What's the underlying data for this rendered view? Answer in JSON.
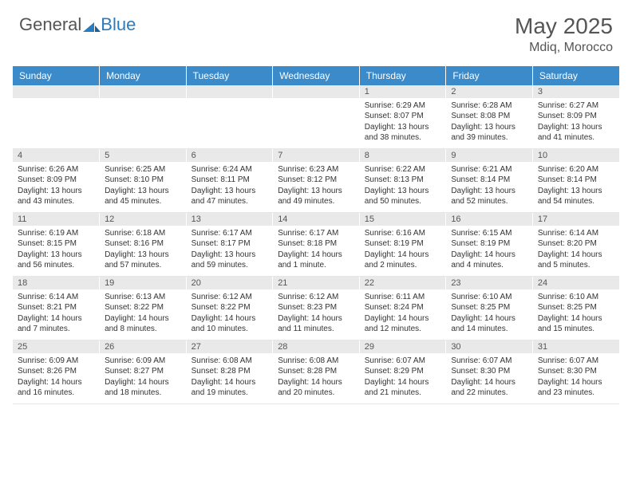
{
  "brand": {
    "general": "General",
    "blue": "Blue"
  },
  "title": {
    "month": "May 2025",
    "location": "Mdiq, Morocco"
  },
  "colors": {
    "header_bg": "#3b8aca",
    "header_text": "#ffffff",
    "daynum_bg": "#e9e9e9",
    "text": "#333333",
    "title_text": "#555555",
    "logo_blue": "#2b7bbf"
  },
  "dayLabels": [
    "Sunday",
    "Monday",
    "Tuesday",
    "Wednesday",
    "Thursday",
    "Friday",
    "Saturday"
  ],
  "weeks": [
    [
      {
        "n": "",
        "sr": "",
        "ss": "",
        "dl": ""
      },
      {
        "n": "",
        "sr": "",
        "ss": "",
        "dl": ""
      },
      {
        "n": "",
        "sr": "",
        "ss": "",
        "dl": ""
      },
      {
        "n": "",
        "sr": "",
        "ss": "",
        "dl": ""
      },
      {
        "n": "1",
        "sr": "6:29 AM",
        "ss": "8:07 PM",
        "dl": "13 hours and 38 minutes."
      },
      {
        "n": "2",
        "sr": "6:28 AM",
        "ss": "8:08 PM",
        "dl": "13 hours and 39 minutes."
      },
      {
        "n": "3",
        "sr": "6:27 AM",
        "ss": "8:09 PM",
        "dl": "13 hours and 41 minutes."
      }
    ],
    [
      {
        "n": "4",
        "sr": "6:26 AM",
        "ss": "8:09 PM",
        "dl": "13 hours and 43 minutes."
      },
      {
        "n": "5",
        "sr": "6:25 AM",
        "ss": "8:10 PM",
        "dl": "13 hours and 45 minutes."
      },
      {
        "n": "6",
        "sr": "6:24 AM",
        "ss": "8:11 PM",
        "dl": "13 hours and 47 minutes."
      },
      {
        "n": "7",
        "sr": "6:23 AM",
        "ss": "8:12 PM",
        "dl": "13 hours and 49 minutes."
      },
      {
        "n": "8",
        "sr": "6:22 AM",
        "ss": "8:13 PM",
        "dl": "13 hours and 50 minutes."
      },
      {
        "n": "9",
        "sr": "6:21 AM",
        "ss": "8:14 PM",
        "dl": "13 hours and 52 minutes."
      },
      {
        "n": "10",
        "sr": "6:20 AM",
        "ss": "8:14 PM",
        "dl": "13 hours and 54 minutes."
      }
    ],
    [
      {
        "n": "11",
        "sr": "6:19 AM",
        "ss": "8:15 PM",
        "dl": "13 hours and 56 minutes."
      },
      {
        "n": "12",
        "sr": "6:18 AM",
        "ss": "8:16 PM",
        "dl": "13 hours and 57 minutes."
      },
      {
        "n": "13",
        "sr": "6:17 AM",
        "ss": "8:17 PM",
        "dl": "13 hours and 59 minutes."
      },
      {
        "n": "14",
        "sr": "6:17 AM",
        "ss": "8:18 PM",
        "dl": "14 hours and 1 minute."
      },
      {
        "n": "15",
        "sr": "6:16 AM",
        "ss": "8:19 PM",
        "dl": "14 hours and 2 minutes."
      },
      {
        "n": "16",
        "sr": "6:15 AM",
        "ss": "8:19 PM",
        "dl": "14 hours and 4 minutes."
      },
      {
        "n": "17",
        "sr": "6:14 AM",
        "ss": "8:20 PM",
        "dl": "14 hours and 5 minutes."
      }
    ],
    [
      {
        "n": "18",
        "sr": "6:14 AM",
        "ss": "8:21 PM",
        "dl": "14 hours and 7 minutes."
      },
      {
        "n": "19",
        "sr": "6:13 AM",
        "ss": "8:22 PM",
        "dl": "14 hours and 8 minutes."
      },
      {
        "n": "20",
        "sr": "6:12 AM",
        "ss": "8:22 PM",
        "dl": "14 hours and 10 minutes."
      },
      {
        "n": "21",
        "sr": "6:12 AM",
        "ss": "8:23 PM",
        "dl": "14 hours and 11 minutes."
      },
      {
        "n": "22",
        "sr": "6:11 AM",
        "ss": "8:24 PM",
        "dl": "14 hours and 12 minutes."
      },
      {
        "n": "23",
        "sr": "6:10 AM",
        "ss": "8:25 PM",
        "dl": "14 hours and 14 minutes."
      },
      {
        "n": "24",
        "sr": "6:10 AM",
        "ss": "8:25 PM",
        "dl": "14 hours and 15 minutes."
      }
    ],
    [
      {
        "n": "25",
        "sr": "6:09 AM",
        "ss": "8:26 PM",
        "dl": "14 hours and 16 minutes."
      },
      {
        "n": "26",
        "sr": "6:09 AM",
        "ss": "8:27 PM",
        "dl": "14 hours and 18 minutes."
      },
      {
        "n": "27",
        "sr": "6:08 AM",
        "ss": "8:28 PM",
        "dl": "14 hours and 19 minutes."
      },
      {
        "n": "28",
        "sr": "6:08 AM",
        "ss": "8:28 PM",
        "dl": "14 hours and 20 minutes."
      },
      {
        "n": "29",
        "sr": "6:07 AM",
        "ss": "8:29 PM",
        "dl": "14 hours and 21 minutes."
      },
      {
        "n": "30",
        "sr": "6:07 AM",
        "ss": "8:30 PM",
        "dl": "14 hours and 22 minutes."
      },
      {
        "n": "31",
        "sr": "6:07 AM",
        "ss": "8:30 PM",
        "dl": "14 hours and 23 minutes."
      }
    ]
  ],
  "labels": {
    "sunrise": "Sunrise:",
    "sunset": "Sunset:",
    "daylight": "Daylight:"
  }
}
